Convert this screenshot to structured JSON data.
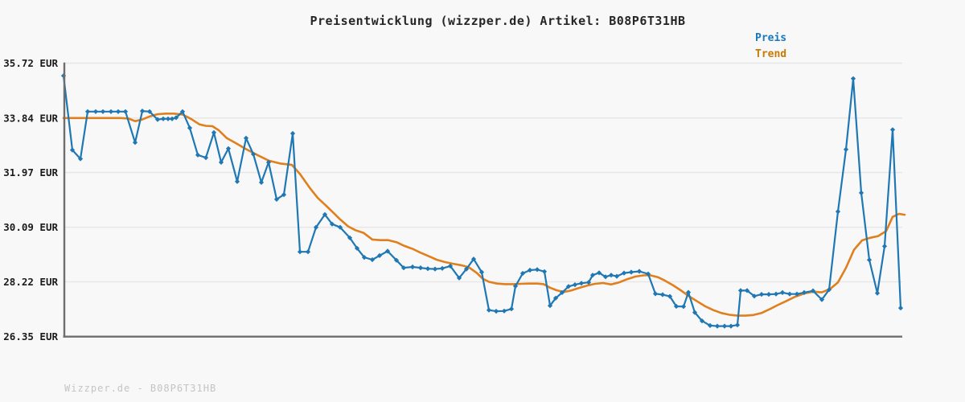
{
  "title": "Preisentwicklung (wizzper.de) Artikel: B08P6T31HB",
  "watermark": "Wizzper.de - B08P6T31HB",
  "legend": [
    {
      "label": "Preis",
      "color": "#1778bd"
    },
    {
      "label": "Trend",
      "color": "#c87a04"
    }
  ],
  "colors": {
    "background": "#f8f8f8",
    "grid": "#e7e7e7",
    "axis": "#6e6e6e",
    "tick_label": "#1b1b1b",
    "price_line": "#1f77b4",
    "trend_line": "#e07f1e",
    "watermark": "#c4c4c4"
  },
  "chart_data": {
    "type": "line",
    "title": "Preisentwicklung (wizzper.de) Artikel: B08P6T31HB",
    "xlabel": "",
    "ylabel": "EUR",
    "x_unit": "pixel",
    "x_axis_labels_visible": false,
    "grid": "horizontal",
    "legend_position": "top-right",
    "ylim": [
      26.35,
      35.72
    ],
    "yticks": [
      {
        "label": "35.72 EUR",
        "value": 35.72
      },
      {
        "label": "33.84 EUR",
        "value": 33.84
      },
      {
        "label": "31.97 EUR",
        "value": 31.97
      },
      {
        "label": "30.09 EUR",
        "value": 30.09
      },
      {
        "label": "28.22 EUR",
        "value": 28.22
      },
      {
        "label": "26.35 EUR",
        "value": 26.35
      }
    ],
    "series": [
      {
        "name": "Preis",
        "style": "line+diamond-markers",
        "color": "#1f77b4",
        "points": [
          [
            79,
            35.29
          ],
          [
            90,
            32.74
          ],
          [
            100,
            32.44
          ],
          [
            109,
            34.06
          ],
          [
            119,
            34.06
          ],
          [
            128,
            34.06
          ],
          [
            138,
            34.06
          ],
          [
            147,
            34.06
          ],
          [
            156,
            34.06
          ],
          [
            168,
            33.0
          ],
          [
            177,
            34.08
          ],
          [
            186,
            34.06
          ],
          [
            196,
            33.79
          ],
          [
            203,
            33.81
          ],
          [
            209,
            33.81
          ],
          [
            214,
            33.81
          ],
          [
            219,
            33.85
          ],
          [
            227,
            34.06
          ],
          [
            236,
            33.5
          ],
          [
            246,
            32.57
          ],
          [
            256,
            32.48
          ],
          [
            266,
            33.34
          ],
          [
            275,
            32.32
          ],
          [
            284,
            32.79
          ],
          [
            295,
            31.66
          ],
          [
            306,
            33.15
          ],
          [
            315,
            32.6
          ],
          [
            325,
            31.63
          ],
          [
            334,
            32.32
          ],
          [
            344,
            31.05
          ],
          [
            353,
            31.21
          ],
          [
            364,
            33.31
          ],
          [
            373,
            29.25
          ],
          [
            383,
            29.25
          ],
          [
            393,
            30.09
          ],
          [
            404,
            30.53
          ],
          [
            413,
            30.2
          ],
          [
            423,
            30.09
          ],
          [
            435,
            29.73
          ],
          [
            444,
            29.37
          ],
          [
            453,
            29.06
          ],
          [
            463,
            28.98
          ],
          [
            472,
            29.12
          ],
          [
            482,
            29.27
          ],
          [
            493,
            28.96
          ],
          [
            502,
            28.7
          ],
          [
            513,
            28.73
          ],
          [
            523,
            28.7
          ],
          [
            532,
            28.67
          ],
          [
            541,
            28.66
          ],
          [
            550,
            28.68
          ],
          [
            560,
            28.76
          ],
          [
            571,
            28.35
          ],
          [
            580,
            28.66
          ],
          [
            589,
            29.0
          ],
          [
            599,
            28.55
          ],
          [
            608,
            27.25
          ],
          [
            617,
            27.21
          ],
          [
            627,
            27.22
          ],
          [
            636,
            27.29
          ],
          [
            641,
            28.07
          ],
          [
            650,
            28.51
          ],
          [
            659,
            28.62
          ],
          [
            668,
            28.64
          ],
          [
            677,
            28.57
          ],
          [
            684,
            27.4
          ],
          [
            691,
            27.66
          ],
          [
            699,
            27.85
          ],
          [
            707,
            28.06
          ],
          [
            715,
            28.12
          ],
          [
            723,
            28.17
          ],
          [
            732,
            28.2
          ],
          [
            737,
            28.45
          ],
          [
            745,
            28.53
          ],
          [
            753,
            28.39
          ],
          [
            760,
            28.45
          ],
          [
            767,
            28.41
          ],
          [
            776,
            28.52
          ],
          [
            785,
            28.55
          ],
          [
            795,
            28.58
          ],
          [
            806,
            28.49
          ],
          [
            815,
            27.81
          ],
          [
            824,
            27.78
          ],
          [
            833,
            27.72
          ],
          [
            841,
            27.38
          ],
          [
            850,
            27.37
          ],
          [
            856,
            27.86
          ],
          [
            864,
            27.17
          ],
          [
            873,
            26.88
          ],
          [
            883,
            26.72
          ],
          [
            892,
            26.7
          ],
          [
            901,
            26.7
          ],
          [
            909,
            26.7
          ],
          [
            917,
            26.74
          ],
          [
            921,
            27.92
          ],
          [
            929,
            27.92
          ],
          [
            938,
            27.73
          ],
          [
            947,
            27.79
          ],
          [
            956,
            27.79
          ],
          [
            965,
            27.8
          ],
          [
            973,
            27.85
          ],
          [
            982,
            27.8
          ],
          [
            991,
            27.8
          ],
          [
            1000,
            27.85
          ],
          [
            1011,
            27.91
          ],
          [
            1022,
            27.61
          ],
          [
            1031,
            27.95
          ],
          [
            1042,
            30.63
          ],
          [
            1052,
            32.76
          ],
          [
            1061,
            35.19
          ],
          [
            1071,
            31.27
          ],
          [
            1081,
            28.97
          ],
          [
            1091,
            27.83
          ],
          [
            1100,
            29.44
          ],
          [
            1110,
            33.44
          ],
          [
            1120,
            27.32
          ]
        ]
      },
      {
        "name": "Trend",
        "style": "line",
        "color": "#e07f1e",
        "points": [
          [
            79,
            33.84
          ],
          [
            115,
            33.84
          ],
          [
            150,
            33.84
          ],
          [
            160,
            33.82
          ],
          [
            168,
            33.73
          ],
          [
            176,
            33.78
          ],
          [
            186,
            33.89
          ],
          [
            196,
            33.97
          ],
          [
            206,
            33.99
          ],
          [
            216,
            33.99
          ],
          [
            227,
            33.96
          ],
          [
            238,
            33.8
          ],
          [
            248,
            33.62
          ],
          [
            256,
            33.57
          ],
          [
            264,
            33.56
          ],
          [
            272,
            33.42
          ],
          [
            282,
            33.15
          ],
          [
            293,
            32.98
          ],
          [
            306,
            32.77
          ],
          [
            320,
            32.57
          ],
          [
            334,
            32.38
          ],
          [
            348,
            32.28
          ],
          [
            363,
            32.23
          ],
          [
            373,
            31.92
          ],
          [
            385,
            31.45
          ],
          [
            395,
            31.1
          ],
          [
            404,
            30.87
          ],
          [
            413,
            30.63
          ],
          [
            423,
            30.36
          ],
          [
            433,
            30.12
          ],
          [
            442,
            29.99
          ],
          [
            452,
            29.9
          ],
          [
            463,
            29.67
          ],
          [
            473,
            29.65
          ],
          [
            483,
            29.65
          ],
          [
            493,
            29.58
          ],
          [
            503,
            29.45
          ],
          [
            513,
            29.35
          ],
          [
            523,
            29.22
          ],
          [
            533,
            29.1
          ],
          [
            543,
            28.98
          ],
          [
            553,
            28.9
          ],
          [
            563,
            28.84
          ],
          [
            573,
            28.79
          ],
          [
            583,
            28.72
          ],
          [
            593,
            28.52
          ],
          [
            600,
            28.33
          ],
          [
            608,
            28.22
          ],
          [
            618,
            28.16
          ],
          [
            628,
            28.14
          ],
          [
            638,
            28.14
          ],
          [
            648,
            28.15
          ],
          [
            658,
            28.16
          ],
          [
            668,
            28.16
          ],
          [
            676,
            28.14
          ],
          [
            684,
            28.02
          ],
          [
            692,
            27.93
          ],
          [
            701,
            27.87
          ],
          [
            710,
            27.92
          ],
          [
            720,
            28.01
          ],
          [
            730,
            28.09
          ],
          [
            740,
            28.15
          ],
          [
            750,
            28.18
          ],
          [
            760,
            28.13
          ],
          [
            770,
            28.2
          ],
          [
            780,
            28.31
          ],
          [
            790,
            28.4
          ],
          [
            800,
            28.44
          ],
          [
            808,
            28.45
          ],
          [
            818,
            28.38
          ],
          [
            827,
            28.26
          ],
          [
            837,
            28.1
          ],
          [
            847,
            27.92
          ],
          [
            857,
            27.72
          ],
          [
            867,
            27.55
          ],
          [
            877,
            27.38
          ],
          [
            887,
            27.25
          ],
          [
            897,
            27.15
          ],
          [
            907,
            27.09
          ],
          [
            917,
            27.06
          ],
          [
            927,
            27.06
          ],
          [
            937,
            27.08
          ],
          [
            947,
            27.15
          ],
          [
            957,
            27.28
          ],
          [
            967,
            27.42
          ],
          [
            977,
            27.55
          ],
          [
            988,
            27.7
          ],
          [
            1000,
            27.82
          ],
          [
            1011,
            27.88
          ],
          [
            1022,
            27.86
          ],
          [
            1032,
            27.97
          ],
          [
            1042,
            28.2
          ],
          [
            1052,
            28.7
          ],
          [
            1062,
            29.32
          ],
          [
            1072,
            29.64
          ],
          [
            1082,
            29.73
          ],
          [
            1092,
            29.79
          ],
          [
            1102,
            29.96
          ],
          [
            1110,
            30.45
          ],
          [
            1118,
            30.55
          ],
          [
            1125,
            30.52
          ]
        ]
      }
    ]
  }
}
